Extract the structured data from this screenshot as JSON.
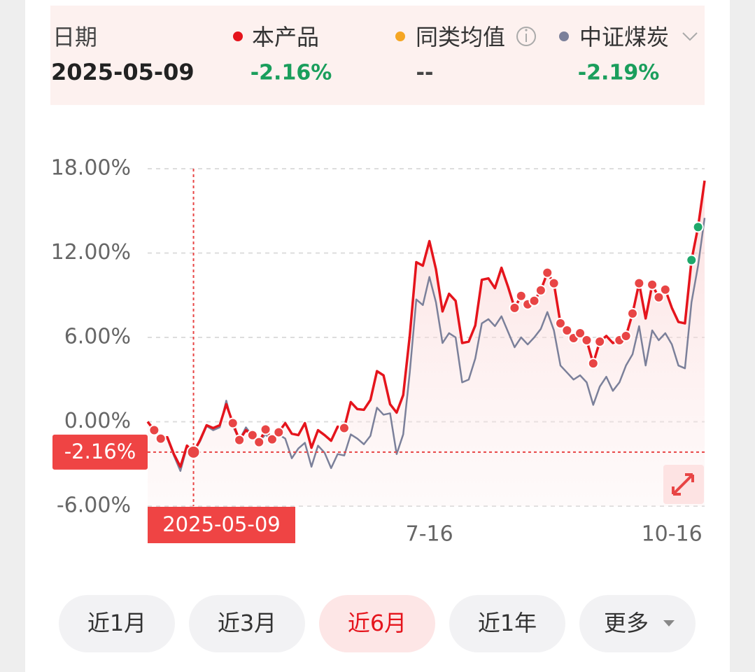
{
  "header": {
    "date_label": "日期",
    "date": "2025-05-09",
    "product_value": "-2.16%",
    "peer": {
      "name": "同类均值",
      "color": "#f5a623",
      "value": "--"
    },
    "index_value": "-2.19%"
  },
  "chart_data": {
    "type": "line",
    "categories": [
      null,
      null,
      null,
      null,
      null,
      null,
      null,
      "2025-05-09",
      null,
      null,
      null,
      null,
      null,
      null,
      null,
      null,
      null,
      null,
      null,
      null,
      null,
      null,
      null,
      null,
      null,
      null,
      null,
      null,
      null,
      null,
      null,
      null,
      null,
      null,
      null,
      null,
      null,
      null,
      null,
      null,
      null,
      null,
      null,
      "7-16",
      null,
      null,
      null,
      null,
      null,
      null,
      null,
      null,
      null,
      null,
      null,
      null,
      null,
      null,
      null,
      null,
      null,
      null,
      null,
      null,
      null,
      null,
      null,
      null,
      null,
      null,
      null,
      null,
      null,
      null,
      null,
      null,
      null,
      null,
      null,
      null,
      "10-16",
      null,
      null,
      null,
      null,
      null
    ],
    "series": [
      {
        "name": "本产品",
        "color": "#e5141c",
        "values": [
          0,
          -0.6,
          -1.2,
          -1.1,
          -2.3,
          -3.2,
          -1.7,
          -2.16,
          -1.3,
          -0.25,
          -0.45,
          -0.25,
          1.25,
          -0.1,
          -1.3,
          -0.6,
          -0.95,
          -1.45,
          -0.55,
          -1.25,
          -0.75,
          -0.1,
          -0.85,
          -0.95,
          -0.1,
          -1.85,
          -0.6,
          -0.95,
          -1.35,
          -0.35,
          -0.45,
          1.4,
          0.9,
          0.85,
          1.55,
          3.6,
          3.3,
          1.25,
          0.65,
          1.9,
          6.1,
          11.35,
          11.1,
          12.85,
          10.85,
          7.85,
          9.1,
          8.6,
          5.6,
          5.7,
          6.85,
          10.1,
          10.2,
          9.5,
          10.95,
          9.6,
          8.1,
          8.95,
          8.35,
          8.6,
          9.35,
          10.6,
          9.85,
          7.0,
          6.5,
          5.95,
          6.3,
          5.8,
          4.15,
          5.7,
          6.1,
          5.6,
          5.8,
          6.1,
          7.7,
          9.85,
          7.35,
          9.75,
          8.85,
          9.4,
          8.1,
          7.1,
          7.0,
          11.5,
          13.85,
          17.15
        ]
      },
      {
        "name": "中证煤炭",
        "color": "#7b809a",
        "values": [
          0,
          -0.5,
          -1.2,
          -1.2,
          -2.4,
          -3.5,
          -1.8,
          -2.19,
          -1.4,
          -0.3,
          -0.6,
          -0.4,
          1.5,
          -0.3,
          -1.3,
          -0.4,
          -1.0,
          -1.4,
          -0.9,
          -1.4,
          -0.9,
          -1.2,
          -2.6,
          -1.9,
          -1.5,
          -3.2,
          -1.7,
          -2.2,
          -3.3,
          -2.3,
          -2.4,
          -0.9,
          -1.2,
          -1.6,
          -1.0,
          1.0,
          0.5,
          0.6,
          -2.3,
          -0.9,
          3.5,
          8.7,
          8.3,
          10.3,
          8.5,
          5.6,
          6.3,
          6.0,
          2.8,
          3.0,
          4.5,
          7.0,
          7.3,
          6.8,
          7.5,
          6.4,
          5.3,
          6.0,
          5.5,
          6.0,
          6.6,
          7.8,
          6.5,
          4.0,
          3.5,
          3.0,
          3.3,
          2.8,
          1.2,
          2.5,
          3.2,
          2.2,
          2.8,
          4.0,
          4.8,
          6.8,
          4.0,
          6.5,
          5.8,
          6.3,
          5.5,
          4.0,
          3.8,
          8.5,
          11.1,
          14.5
        ]
      }
    ],
    "markers": [
      {
        "color": "#e84545",
        "indices": [
          1,
          2,
          13,
          14,
          16,
          17,
          18,
          19,
          20,
          30,
          56,
          57,
          58,
          59,
          60,
          61,
          62,
          63,
          64,
          65,
          66,
          67,
          68,
          69,
          72,
          73,
          74,
          75,
          77,
          78,
          79
        ]
      },
      {
        "color": "#1fa86b",
        "indices": [
          83,
          84
        ]
      }
    ],
    "crosshair": {
      "index": 7,
      "label": "-2.16%"
    },
    "ylim": [
      -6,
      18
    ],
    "yticks": [
      {
        "value": -6,
        "label": "-6.00%"
      },
      {
        "value": 0,
        "label": "0.00%"
      },
      {
        "value": 6,
        "label": "6.00%"
      },
      {
        "value": 12,
        "label": "12.00%"
      },
      {
        "value": 18,
        "label": "18.00%"
      }
    ],
    "grid": true
  },
  "buttons": {
    "items": [
      "近1月",
      "近3月",
      "近6月",
      "近1年",
      "更多"
    ],
    "active": 2
  }
}
